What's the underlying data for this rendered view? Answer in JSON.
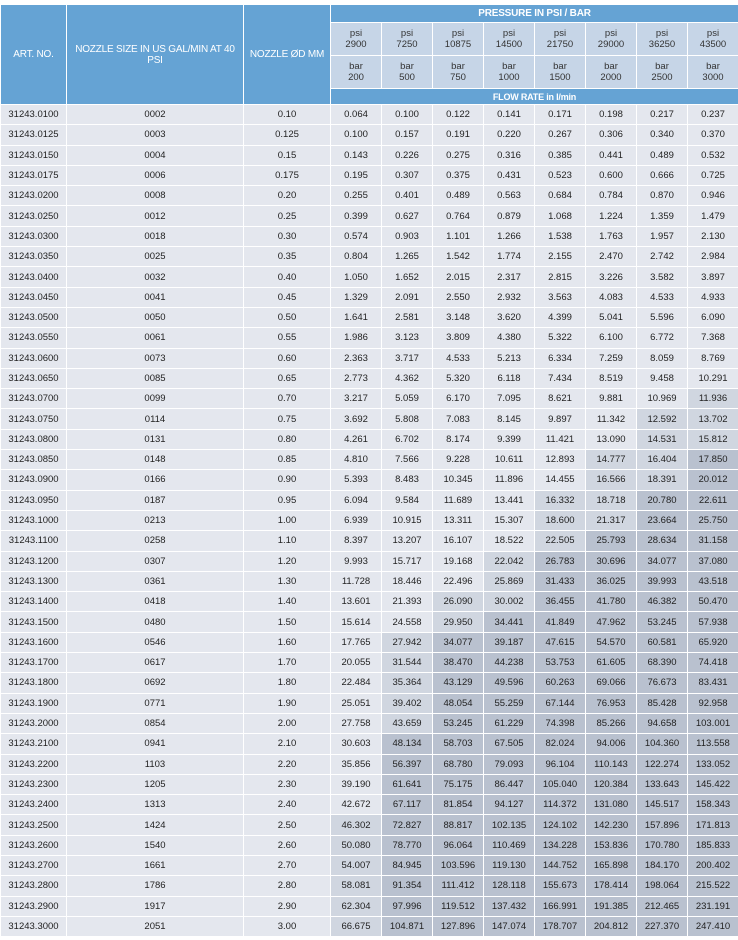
{
  "header": {
    "art_no": "ART. NO.",
    "nozzle_size": "NOZZLE SIZE IN US GAL/MIN AT 40 PSI",
    "nozzle_diameter": "NOZZLE ØD MM",
    "pressure": "PRESSURE IN PSI / BAR",
    "flow_rate": "FLOW RATE in l/min",
    "psi_label": "psi",
    "bar_label": "bar",
    "psi": [
      "2900",
      "7250",
      "10875",
      "14500",
      "21750",
      "29000",
      "36250",
      "43500"
    ],
    "bar": [
      "200",
      "500",
      "750",
      "1000",
      "1500",
      "2000",
      "2500",
      "3000"
    ]
  },
  "colors": {
    "header": "#65a3d4",
    "subheader": "#c6d5e7",
    "cell": "#e4e7ee",
    "cell_medium": "#d0d6e0",
    "cell_dark": "#b9c1cf"
  },
  "rows": [
    [
      "31243.0100",
      "0002",
      "0.10",
      [
        "0.064",
        "0.100",
        "0.122",
        "0.141",
        "0.171",
        "0.198",
        "0.217",
        "0.237"
      ]
    ],
    [
      "31243.0125",
      "0003",
      "0.125",
      [
        "0.100",
        "0.157",
        "0.191",
        "0.220",
        "0.267",
        "0.306",
        "0.340",
        "0.370"
      ]
    ],
    [
      "31243.0150",
      "0004",
      "0.15",
      [
        "0.143",
        "0.226",
        "0.275",
        "0.316",
        "0.385",
        "0.441",
        "0.489",
        "0.532"
      ]
    ],
    [
      "31243.0175",
      "0006",
      "0.175",
      [
        "0.195",
        "0.307",
        "0.375",
        "0.431",
        "0.523",
        "0.600",
        "0.666",
        "0.725"
      ]
    ],
    [
      "31243.0200",
      "0008",
      "0.20",
      [
        "0.255",
        "0.401",
        "0.489",
        "0.563",
        "0.684",
        "0.784",
        "0.870",
        "0.946"
      ]
    ],
    [
      "31243.0250",
      "0012",
      "0.25",
      [
        "0.399",
        "0.627",
        "0.764",
        "0.879",
        "1.068",
        "1.224",
        "1.359",
        "1.479"
      ]
    ],
    [
      "31243.0300",
      "0018",
      "0.30",
      [
        "0.574",
        "0.903",
        "1.101",
        "1.266",
        "1.538",
        "1.763",
        "1.957",
        "2.130"
      ]
    ],
    [
      "31243.0350",
      "0025",
      "0.35",
      [
        "0.804",
        "1.265",
        "1.542",
        "1.774",
        "2.155",
        "2.470",
        "2.742",
        "2.984"
      ]
    ],
    [
      "31243.0400",
      "0032",
      "0.40",
      [
        "1.050",
        "1.652",
        "2.015",
        "2.317",
        "2.815",
        "3.226",
        "3.582",
        "3.897"
      ]
    ],
    [
      "31243.0450",
      "0041",
      "0.45",
      [
        "1.329",
        "2.091",
        "2.550",
        "2.932",
        "3.563",
        "4.083",
        "4.533",
        "4.933"
      ]
    ],
    [
      "31243.0500",
      "0050",
      "0.50",
      [
        "1.641",
        "2.581",
        "3.148",
        "3.620",
        "4.399",
        "5.041",
        "5.596",
        "6.090"
      ]
    ],
    [
      "31243.0550",
      "0061",
      "0.55",
      [
        "1.986",
        "3.123",
        "3.809",
        "4.380",
        "5.322",
        "6.100",
        "6.772",
        "7.368"
      ]
    ],
    [
      "31243.0600",
      "0073",
      "0.60",
      [
        "2.363",
        "3.717",
        "4.533",
        "5.213",
        "6.334",
        "7.259",
        "8.059",
        "8.769"
      ]
    ],
    [
      "31243.0650",
      "0085",
      "0.65",
      [
        "2.773",
        "4.362",
        "5.320",
        "6.118",
        "7.434",
        "8.519",
        "9.458",
        "10.291"
      ]
    ],
    [
      "31243.0700",
      "0099",
      "0.70",
      [
        "3.217",
        "5.059",
        "6.170",
        "7.095",
        "8.621",
        "9.881",
        "10.969",
        "11.936"
      ]
    ],
    [
      "31243.0750",
      "0114",
      "0.75",
      [
        "3.692",
        "5.808",
        "7.083",
        "8.145",
        "9.897",
        "11.342",
        "12.592",
        "13.702"
      ]
    ],
    [
      "31243.0800",
      "0131",
      "0.80",
      [
        "4.261",
        "6.702",
        "8.174",
        "9.399",
        "11.421",
        "13.090",
        "14.531",
        "15.812"
      ]
    ],
    [
      "31243.0850",
      "0148",
      "0.85",
      [
        "4.810",
        "7.566",
        "9.228",
        "10.611",
        "12.893",
        "14.777",
        "16.404",
        "17.850"
      ]
    ],
    [
      "31243.0900",
      "0166",
      "0.90",
      [
        "5.393",
        "8.483",
        "10.345",
        "11.896",
        "14.455",
        "16.566",
        "18.391",
        "20.012"
      ]
    ],
    [
      "31243.0950",
      "0187",
      "0.95",
      [
        "6.094",
        "9.584",
        "11.689",
        "13.441",
        "16.332",
        "18.718",
        "20.780",
        "22.611"
      ]
    ],
    [
      "31243.1000",
      "0213",
      "1.00",
      [
        "6.939",
        "10.915",
        "13.311",
        "15.307",
        "18.600",
        "21.317",
        "23.664",
        "25.750"
      ]
    ],
    [
      "31243.1100",
      "0258",
      "1.10",
      [
        "8.397",
        "13.207",
        "16.107",
        "18.522",
        "22.505",
        "25.793",
        "28.634",
        "31.158"
      ]
    ],
    [
      "31243.1200",
      "0307",
      "1.20",
      [
        "9.993",
        "15.717",
        "19.168",
        "22.042",
        "26.783",
        "30.696",
        "34.077",
        "37.080"
      ]
    ],
    [
      "31243.1300",
      "0361",
      "1.30",
      [
        "11.728",
        "18.446",
        "22.496",
        "25.869",
        "31.433",
        "36.025",
        "39.993",
        "43.518"
      ]
    ],
    [
      "31243.1400",
      "0418",
      "1.40",
      [
        "13.601",
        "21.393",
        "26.090",
        "30.002",
        "36.455",
        "41.780",
        "46.382",
        "50.470"
      ]
    ],
    [
      "31243.1500",
      "0480",
      "1.50",
      [
        "15.614",
        "24.558",
        "29.950",
        "34.441",
        "41.849",
        "47.962",
        "53.245",
        "57.938"
      ]
    ],
    [
      "31243.1600",
      "0546",
      "1.60",
      [
        "17.765",
        "27.942",
        "34.077",
        "39.187",
        "47.615",
        "54.570",
        "60.581",
        "65.920"
      ]
    ],
    [
      "31243.1700",
      "0617",
      "1.70",
      [
        "20.055",
        "31.544",
        "38.470",
        "44.238",
        "53.753",
        "61.605",
        "68.390",
        "74.418"
      ]
    ],
    [
      "31243.1800",
      "0692",
      "1.80",
      [
        "22.484",
        "35.364",
        "43.129",
        "49.596",
        "60.263",
        "69.066",
        "76.673",
        "83.431"
      ]
    ],
    [
      "31243.1900",
      "0771",
      "1.90",
      [
        "25.051",
        "39.402",
        "48.054",
        "55.259",
        "67.144",
        "76.953",
        "85.428",
        "92.958"
      ]
    ],
    [
      "31243.2000",
      "0854",
      "2.00",
      [
        "27.758",
        "43.659",
        "53.245",
        "61.229",
        "74.398",
        "85.266",
        "94.658",
        "103.001"
      ]
    ],
    [
      "31243.2100",
      "0941",
      "2.10",
      [
        "30.603",
        "48.134",
        "58.703",
        "67.505",
        "82.024",
        "94.006",
        "104.360",
        "113.558"
      ]
    ],
    [
      "31243.2200",
      "1103",
      "2.20",
      [
        "35.856",
        "56.397",
        "68.780",
        "79.093",
        "96.104",
        "110.143",
        "122.274",
        "133.052"
      ]
    ],
    [
      "31243.2300",
      "1205",
      "2.30",
      [
        "39.190",
        "61.641",
        "75.175",
        "86.447",
        "105.040",
        "120.384",
        "133.643",
        "145.422"
      ]
    ],
    [
      "31243.2400",
      "1313",
      "2.40",
      [
        "42.672",
        "67.117",
        "81.854",
        "94.127",
        "114.372",
        "131.080",
        "145.517",
        "158.343"
      ]
    ],
    [
      "31243.2500",
      "1424",
      "2.50",
      [
        "46.302",
        "72.827",
        "88.817",
        "102.135",
        "124.102",
        "142.230",
        "157.896",
        "171.813"
      ]
    ],
    [
      "31243.2600",
      "1540",
      "2.60",
      [
        "50.080",
        "78.770",
        "96.064",
        "110.469",
        "134.228",
        "153.836",
        "170.780",
        "185.833"
      ]
    ],
    [
      "31243.2700",
      "1661",
      "2.70",
      [
        "54.007",
        "84.945",
        "103.596",
        "119.130",
        "144.752",
        "165.898",
        "184.170",
        "200.402"
      ]
    ],
    [
      "31243.2800",
      "1786",
      "2.80",
      [
        "58.081",
        "91.354",
        "111.412",
        "128.118",
        "155.673",
        "178.414",
        "198.064",
        "215.522"
      ]
    ],
    [
      "31243.2900",
      "1917",
      "2.90",
      [
        "62.304",
        "97.996",
        "119.512",
        "137.432",
        "166.991",
        "191.385",
        "212.465",
        "231.191"
      ]
    ],
    [
      "31243.3000",
      "2051",
      "3.00",
      [
        "66.675",
        "104.871",
        "127.896",
        "147.074",
        "178.707",
        "204.812",
        "227.370",
        "247.410"
      ]
    ]
  ]
}
